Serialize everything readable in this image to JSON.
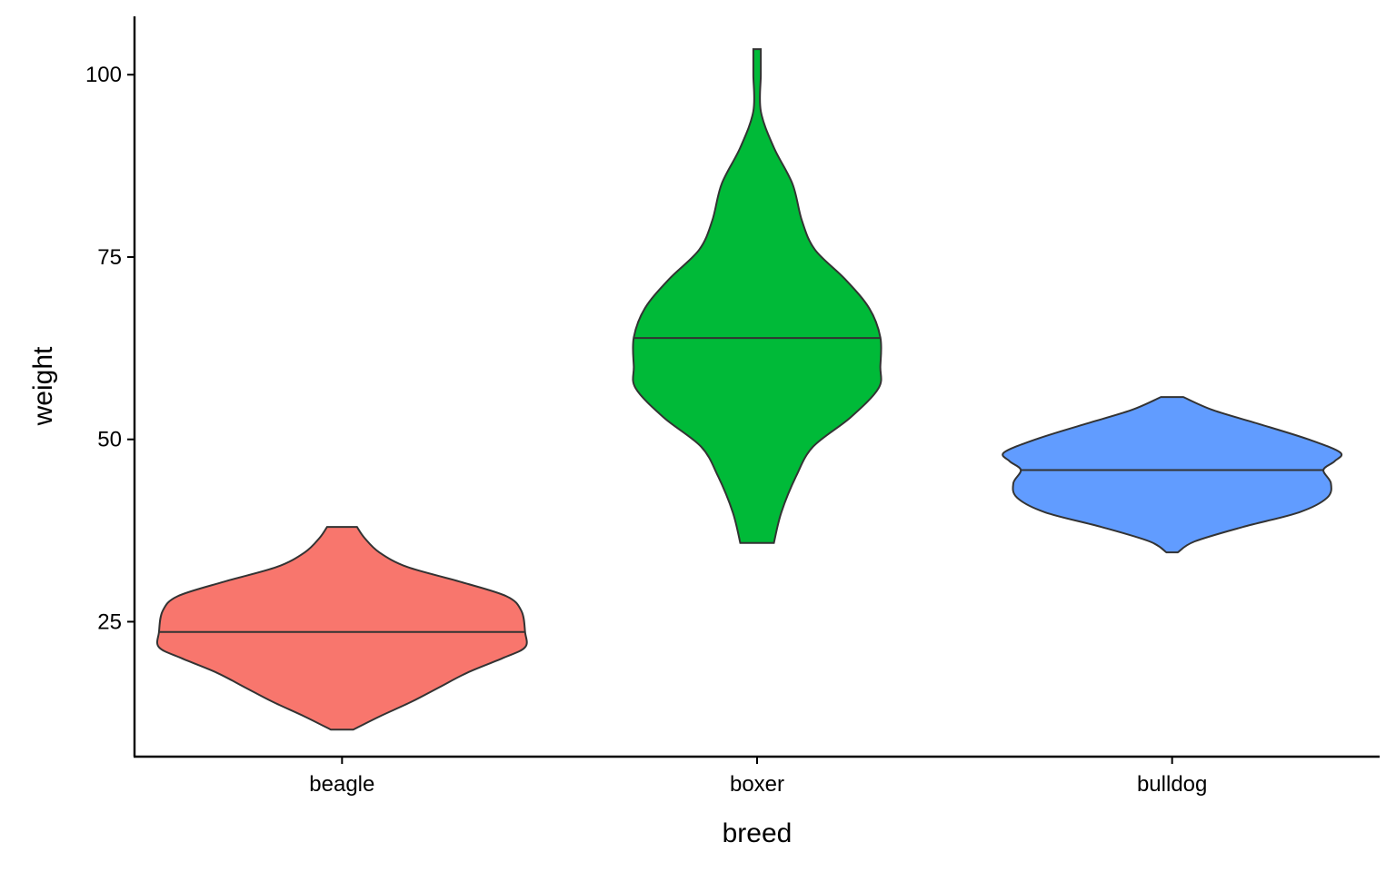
{
  "chart_data": {
    "type": "violin",
    "title": "",
    "xlabel": "breed",
    "ylabel": "weight",
    "ylim": [
      6.5,
      108
    ],
    "yticks": [
      25,
      50,
      75,
      100
    ],
    "ytick_labels": [
      "25",
      "50",
      "75",
      "100"
    ],
    "grid": false,
    "legend": "none",
    "categories": [
      "beagle",
      "boxer",
      "bulldog"
    ],
    "series": [
      {
        "category": "beagle",
        "color": "#F8766D",
        "min": 10.2,
        "max": 38,
        "median": 23.6,
        "density_profile": [
          [
            10.2,
            0.06
          ],
          [
            12,
            0.2
          ],
          [
            14,
            0.37
          ],
          [
            16,
            0.52
          ],
          [
            18,
            0.67
          ],
          [
            20,
            0.86
          ],
          [
            21.5,
            0.98
          ],
          [
            23.6,
            0.98
          ],
          [
            26.5,
            0.96
          ],
          [
            28.5,
            0.88
          ],
          [
            30.5,
            0.63
          ],
          [
            32.5,
            0.35
          ],
          [
            34.5,
            0.2
          ],
          [
            36.5,
            0.12
          ],
          [
            38,
            0.08
          ]
        ]
      },
      {
        "category": "boxer",
        "color": "#00BA38",
        "min": 35.8,
        "max": 103.5,
        "median": 63.9,
        "density_profile": [
          [
            35.8,
            0.09
          ],
          [
            40,
            0.13
          ],
          [
            45,
            0.21
          ],
          [
            49,
            0.3
          ],
          [
            53,
            0.5
          ],
          [
            57,
            0.65
          ],
          [
            60,
            0.66
          ],
          [
            64,
            0.66
          ],
          [
            68,
            0.6
          ],
          [
            72,
            0.47
          ],
          [
            76,
            0.31
          ],
          [
            80,
            0.24
          ],
          [
            85,
            0.19
          ],
          [
            90,
            0.09
          ],
          [
            95,
            0.02
          ],
          [
            100,
            0.02
          ],
          [
            103.5,
            0.02
          ]
        ]
      },
      {
        "category": "bulldog",
        "color": "#619CFF",
        "min": 34.5,
        "max": 55.8,
        "median": 45.8,
        "density_profile": [
          [
            34.5,
            0.03
          ],
          [
            36,
            0.12
          ],
          [
            38,
            0.38
          ],
          [
            40,
            0.68
          ],
          [
            42,
            0.83
          ],
          [
            44,
            0.85
          ],
          [
            45.8,
            0.81
          ],
          [
            47,
            0.87
          ],
          [
            48.2,
            0.9
          ],
          [
            50,
            0.73
          ],
          [
            52,
            0.48
          ],
          [
            54,
            0.22
          ],
          [
            55.8,
            0.06
          ]
        ]
      }
    ]
  }
}
